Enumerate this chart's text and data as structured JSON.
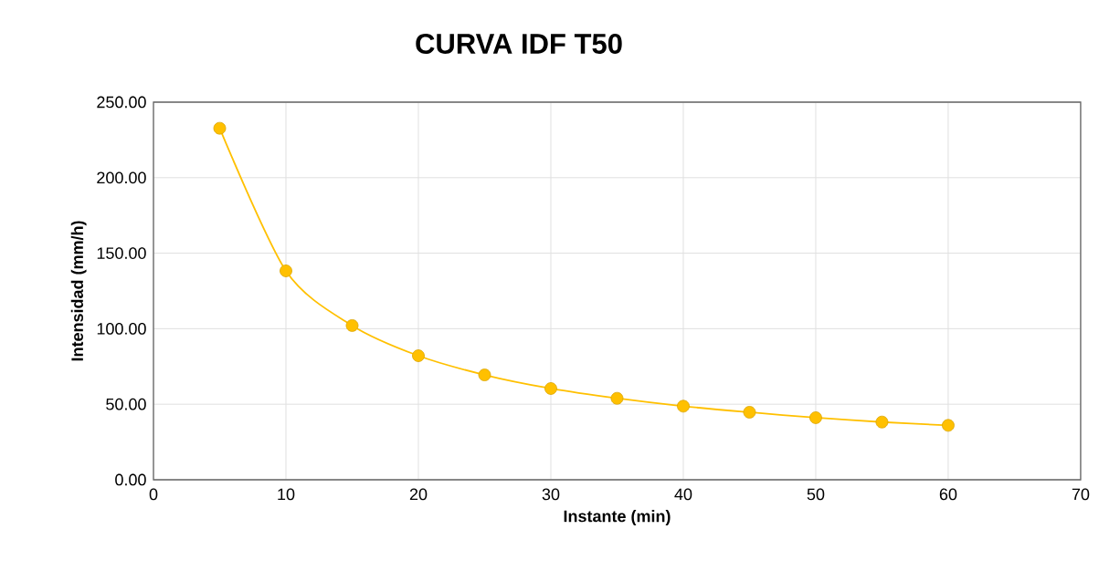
{
  "chart_data": {
    "type": "line",
    "title": "CURVA IDF T50",
    "xlabel": "Instante (min)",
    "ylabel": "Intensidad (mm/h)",
    "x": [
      5,
      10,
      15,
      20,
      25,
      30,
      35,
      40,
      45,
      50,
      55,
      60
    ],
    "values": [
      232.7,
      138.3,
      102.1,
      82.1,
      69.4,
      60.4,
      53.9,
      48.7,
      44.7,
      41.1,
      38.2,
      36.0
    ],
    "color": "#ffc000",
    "xlim": [
      0,
      70
    ],
    "ylim": [
      0,
      250
    ],
    "xticks": [
      0,
      10,
      20,
      30,
      40,
      50,
      60,
      70
    ],
    "yticks": [
      {
        "value": 0,
        "label": "0.00"
      },
      {
        "value": 50,
        "label": "50.00"
      },
      {
        "value": 100,
        "label": "100.00"
      },
      {
        "value": 150,
        "label": "150.00"
      },
      {
        "value": 200,
        "label": "200.00"
      },
      {
        "value": 250,
        "label": "250.00"
      }
    ],
    "grid": true,
    "marker": "circle",
    "line_style": "solid"
  }
}
